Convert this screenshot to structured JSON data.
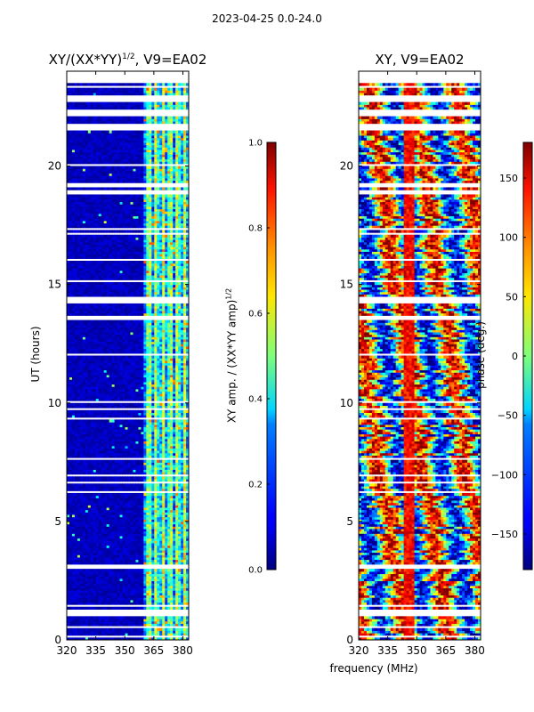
{
  "suptitle": "2023-04-25 0.0-24.0",
  "left_panel": {
    "title": "XY/(XX*YY)",
    "title_sup": "1/2",
    "title_suffix": ", V9=EA02",
    "ylabel": "UT (hours)"
  },
  "right_panel": {
    "title": "XY, V9=EA02"
  },
  "xlabel": "frequency (MHz)",
  "colorbar_left": {
    "label": "XY amp. / (XX*YY amp)",
    "label_sup": "1/2"
  },
  "colorbar_right": {
    "label": "phase (deg.)"
  },
  "chart_data": [
    {
      "type": "heatmap",
      "title": "XY/(XX*YY)^1/2, V9=EA02",
      "xlabel": "",
      "ylabel": "UT (hours)",
      "xlim": [
        320,
        383
      ],
      "ylim": [
        0,
        24
      ],
      "xticks": [
        320,
        335,
        350,
        365,
        380
      ],
      "yticks": [
        0,
        5,
        10,
        15,
        20
      ],
      "colorbar": {
        "label": "XY amp. / (XX*YY amp)^1/2",
        "range": [
          0.0,
          1.0
        ],
        "ticks": [
          0.0,
          0.2,
          0.4,
          0.6,
          0.8,
          1.0
        ],
        "colormap": "jet"
      },
      "band_summary": [
        {
          "freq_range_mhz": [
            320,
            360
          ],
          "typical_value": 0.05
        },
        {
          "freq_range_mhz": [
            360,
            383
          ],
          "typical_value": 0.35,
          "max_value": 0.75
        }
      ]
    },
    {
      "type": "heatmap",
      "title": "XY, V9=EA02",
      "xlabel": "frequency (MHz)",
      "ylabel": "",
      "xlim": [
        320,
        383
      ],
      "ylim": [
        0,
        24
      ],
      "xticks": [
        320,
        335,
        350,
        365,
        380
      ],
      "yticks": [
        0,
        5,
        10,
        15,
        20
      ],
      "colorbar": {
        "label": "phase (deg.)",
        "range": [
          -180,
          180
        ],
        "ticks": [
          -150,
          -100,
          -50,
          0,
          50,
          100,
          150
        ],
        "colormap": "jet"
      }
    }
  ]
}
